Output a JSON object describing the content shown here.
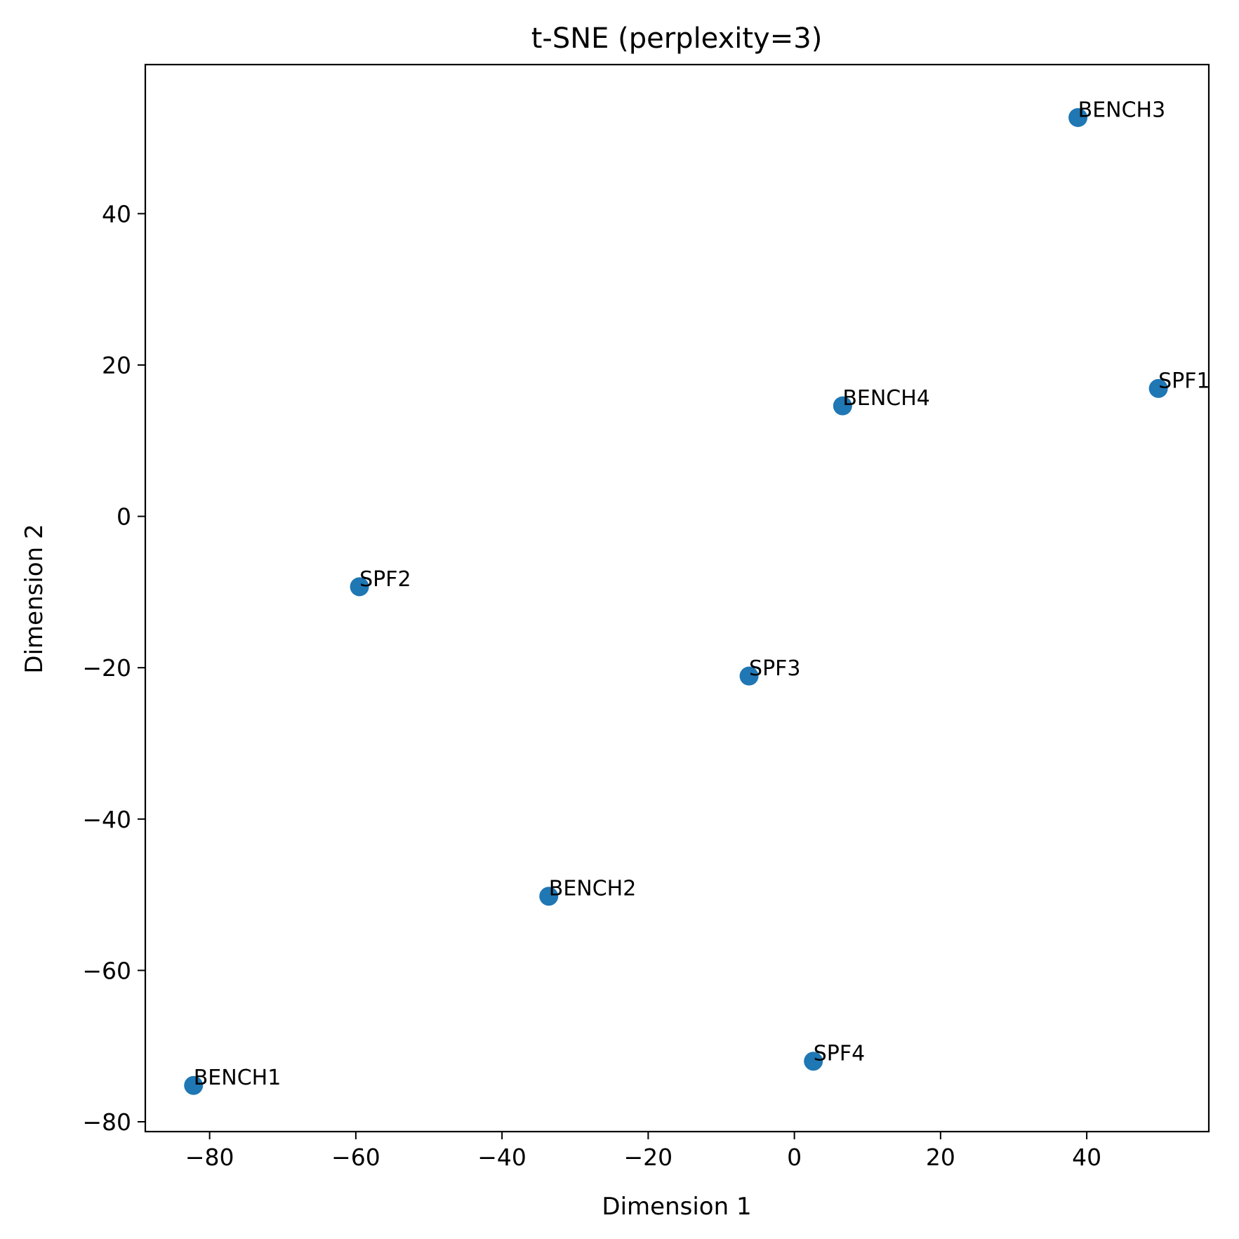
{
  "chart_data": {
    "type": "scatter",
    "title": "t-SNE (perplexity=3)",
    "xlabel": "Dimension 1",
    "ylabel": "Dimension 2",
    "xlim": [
      -88.8,
      56.7
    ],
    "ylim": [
      -81.3,
      59.7
    ],
    "xticks": [
      -80,
      -60,
      -40,
      -20,
      0,
      20,
      40
    ],
    "yticks": [
      -80,
      -60,
      -40,
      -20,
      0,
      20,
      40
    ],
    "tick_labels_x": [
      "−80",
      "−60",
      "−40",
      "−20",
      "0",
      "20",
      "40"
    ],
    "tick_labels_y": [
      "−80",
      "−60",
      "−40",
      "−20",
      "0",
      "20",
      "40"
    ],
    "grid": false,
    "marker_color": "#1f77b4",
    "points": [
      {
        "label": "BENCH3",
        "x": 38.8,
        "y": 52.7
      },
      {
        "label": "SPF1",
        "x": 49.8,
        "y": 16.9
      },
      {
        "label": "BENCH4",
        "x": 6.6,
        "y": 14.6
      },
      {
        "label": "SPF2",
        "x": -59.5,
        "y": -9.3
      },
      {
        "label": "SPF3",
        "x": -6.2,
        "y": -21.1
      },
      {
        "label": "BENCH2",
        "x": -33.6,
        "y": -50.2
      },
      {
        "label": "SPF4",
        "x": 2.6,
        "y": -72.0
      },
      {
        "label": "BENCH1",
        "x": -82.2,
        "y": -75.2
      }
    ]
  }
}
